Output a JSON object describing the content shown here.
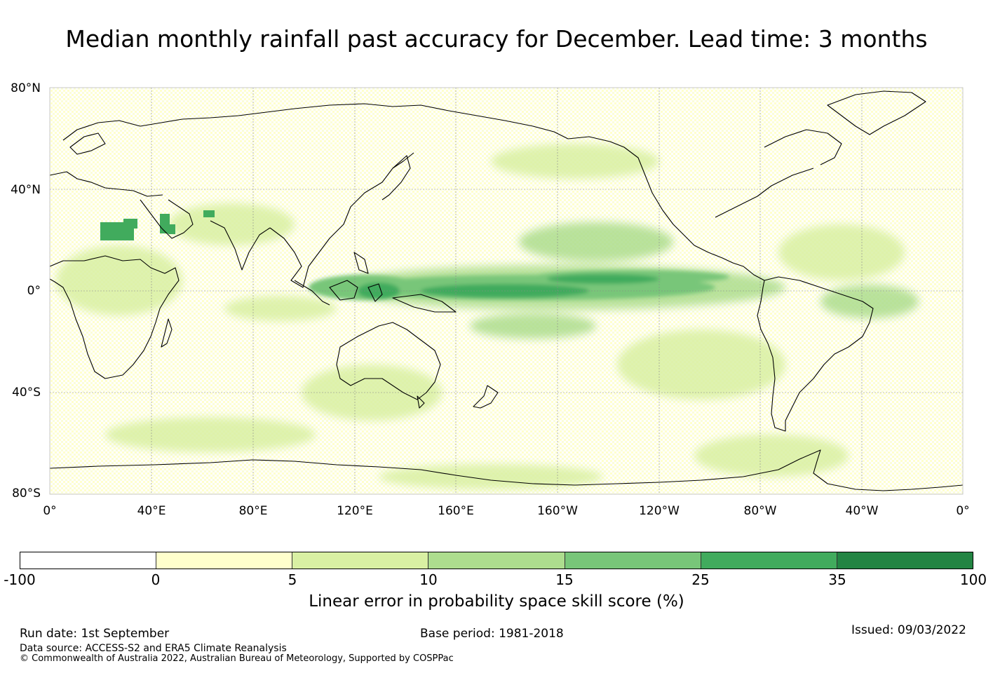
{
  "title": "Median monthly rainfall past accuracy for December. Lead time: 3 months",
  "map": {
    "lat_labels": [
      "80°N",
      "40°N",
      "0°",
      "40°S",
      "80°S"
    ],
    "lon_labels": [
      "0°",
      "40°E",
      "80°E",
      "120°E",
      "160°E",
      "160°W",
      "120°W",
      "80°W",
      "40°W",
      "0°"
    ],
    "lat_range": [
      -80,
      80
    ],
    "lon_range": [
      0,
      360
    ],
    "grid": true,
    "projection": "equirectangular, centred on Pacific (0° to 360°)"
  },
  "colorbar": {
    "ticks": [
      "-100",
      "0",
      "5",
      "10",
      "15",
      "25",
      "35",
      "100"
    ],
    "colors": [
      "#ffffff",
      "#ffffcc",
      "#d9f0a3",
      "#addd8e",
      "#78c679",
      "#41ab5d",
      "#238443"
    ],
    "label": "Linear error in probability space skill score (%)"
  },
  "footer": {
    "run_date": "Run date: 1st September",
    "base_period": "Base period: 1981-2018",
    "issued": "Issued: 09/03/2022",
    "data_source": "Data source: ACCESS-S2 and ERA5 Climate Reanalysis",
    "copyright": "© Commonwealth of Australia 2022, Australian Bureau of Meteorology, Supported by COSPPac"
  }
}
